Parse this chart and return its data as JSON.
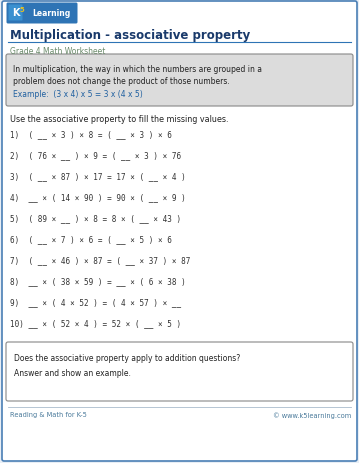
{
  "title": "Multiplication - associative property",
  "subtitle": "Grade 4 Math Worksheet",
  "info_box_line1": "In multiplication, the way in which the numbers are grouped in a",
  "info_box_line2": "problem does not change the product of those numbers.",
  "example_text": "Example:  (3 x 4) x 5 = 3 x (4 x 5)",
  "instruction": "Use the associative property to fill the missing values.",
  "problems": [
    "1)  ( __ × 3 ) × 8 = ( __ × 3 ) × 6",
    "2)  ( 76 × __ ) × 9 = ( __ × 3 ) × 76",
    "3)  ( __ × 87 ) × 17 = 17 × ( __ × 4 )",
    "4)  __ × ( 14 × 90 ) = 90 × ( __ × 9 )",
    "5)  ( 89 × __ ) × 8 = 8 × ( __ × 43 )",
    "6)  ( __ × 7 ) × 6 = ( __ × 5 ) × 6",
    "7)  ( __ × 46 ) × 87 = ( __ × 37 ) × 87",
    "8)  __ × ( 38 × 59 ) = __ × ( 6 × 38 )",
    "9)  __ × ( 4 × 52 ) = ( 4 × 57 ) × __",
    "10) __ × ( 52 × 4 ) = 52 × ( __ × 5 )"
  ],
  "bottom_box_text": "Does the associative property apply to addition questions?\nAnswer and show an example.",
  "footer_left": "Reading & Math for K-5",
  "footer_right": "© www.k5learning.com",
  "bg_color": "#e8eef5",
  "border_color": "#4a7fb5",
  "title_color": "#1a3a6b",
  "subtitle_color": "#6a8a6a",
  "info_box_bg": "#dcdcdc",
  "info_box_border": "#888888",
  "example_color": "#2060a0",
  "problem_color": "#333333",
  "instruction_color": "#222222",
  "footer_color": "#4a7a9b",
  "header_bar_color": "#2e74b5",
  "logo_bg": "#2e74b5",
  "logo_text_color": "white",
  "logo_5_color": "#e8c020"
}
